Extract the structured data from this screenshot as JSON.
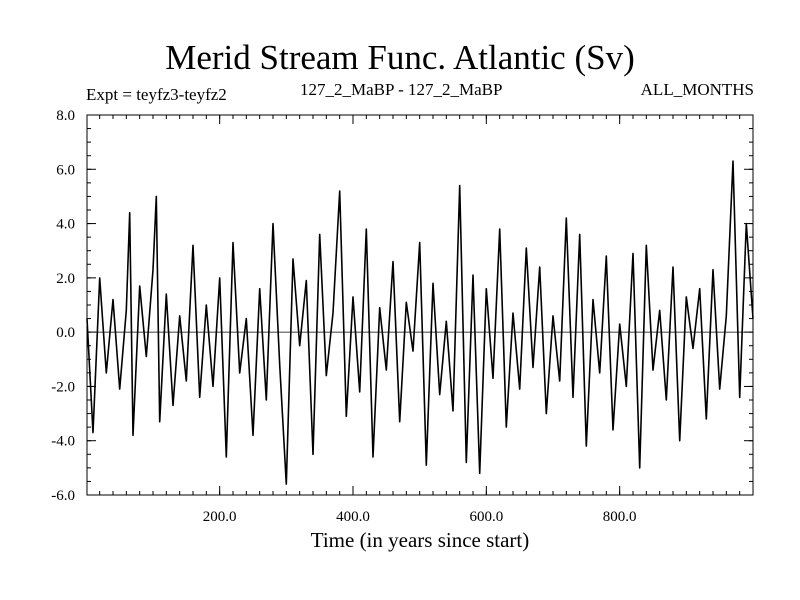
{
  "title": "Merid Stream Func. Atlantic (Sv)",
  "expt_label": "Expt = teyfz3-teyfz2",
  "runs_label": "127_2_MaBP - 127_2_MaBP",
  "months_label": "ALL_MONTHS",
  "chart_data": {
    "type": "line",
    "title": "Merid Stream Func. Atlantic (Sv)",
    "xlabel": "Time (in years since start)",
    "ylabel": "",
    "xlim": [
      1,
      1000
    ],
    "ylim": [
      -6.0,
      8.0
    ],
    "xticks": [
      200,
      400,
      600,
      800
    ],
    "xtick_labels": [
      "200.0",
      "400.0",
      "600.0",
      "800.0"
    ],
    "yticks": [
      -6,
      -4,
      -2,
      0,
      2,
      4,
      6,
      8
    ],
    "ytick_labels": [
      "-6.0",
      "-4.0",
      "-2.0",
      "0.0",
      "2.0",
      "4.0",
      "6.0",
      "8.0"
    ],
    "zero_line": true,
    "grid": false,
    "line_color": "#000000",
    "series": [
      {
        "name": "",
        "x": [
          1,
          10,
          20,
          30,
          40,
          50,
          60,
          65,
          70,
          80,
          90,
          100,
          105,
          110,
          120,
          130,
          140,
          150,
          160,
          170,
          180,
          190,
          200,
          210,
          220,
          230,
          240,
          250,
          260,
          270,
          280,
          290,
          300,
          310,
          320,
          330,
          340,
          350,
          360,
          370,
          380,
          390,
          400,
          410,
          420,
          430,
          440,
          450,
          460,
          470,
          480,
          490,
          500,
          510,
          520,
          530,
          540,
          550,
          560,
          570,
          580,
          590,
          600,
          610,
          620,
          630,
          640,
          650,
          660,
          670,
          680,
          690,
          700,
          710,
          720,
          730,
          740,
          750,
          760,
          770,
          780,
          790,
          800,
          810,
          820,
          830,
          840,
          850,
          860,
          870,
          880,
          890,
          900,
          910,
          920,
          930,
          940,
          950,
          960,
          970,
          980,
          990,
          1000
        ],
        "values": [
          0.5,
          -3.7,
          2.0,
          -1.5,
          1.2,
          -2.1,
          0.8,
          4.4,
          -3.8,
          1.7,
          -0.9,
          2.3,
          5.0,
          -3.3,
          1.4,
          -2.7,
          0.6,
          -1.8,
          3.2,
          -2.4,
          1.0,
          -2.0,
          2.0,
          -4.6,
          3.3,
          -1.5,
          0.5,
          -3.8,
          1.6,
          -2.5,
          4.0,
          -1.2,
          -5.6,
          2.7,
          -0.5,
          1.9,
          -4.5,
          3.6,
          -1.6,
          0.7,
          5.2,
          -3.1,
          1.3,
          -2.2,
          3.8,
          -4.6,
          0.9,
          -1.4,
          2.6,
          -3.3,
          1.1,
          -0.7,
          3.3,
          -4.9,
          1.8,
          -2.3,
          0.4,
          -2.9,
          5.4,
          -4.8,
          2.1,
          -5.2,
          1.6,
          -1.7,
          3.8,
          -3.5,
          0.7,
          -2.1,
          3.1,
          -1.3,
          2.4,
          -3.0,
          0.6,
          -1.8,
          4.2,
          -2.4,
          3.6,
          -4.2,
          1.2,
          -1.5,
          2.8,
          -3.6,
          0.3,
          -2.0,
          2.9,
          -5.0,
          3.2,
          -1.4,
          0.8,
          -2.5,
          2.4,
          -4.0,
          1.3,
          -0.6,
          1.6,
          -3.2,
          2.3,
          -2.1,
          0.6,
          6.3,
          -2.4,
          4.0,
          0.5
        ]
      }
    ]
  }
}
